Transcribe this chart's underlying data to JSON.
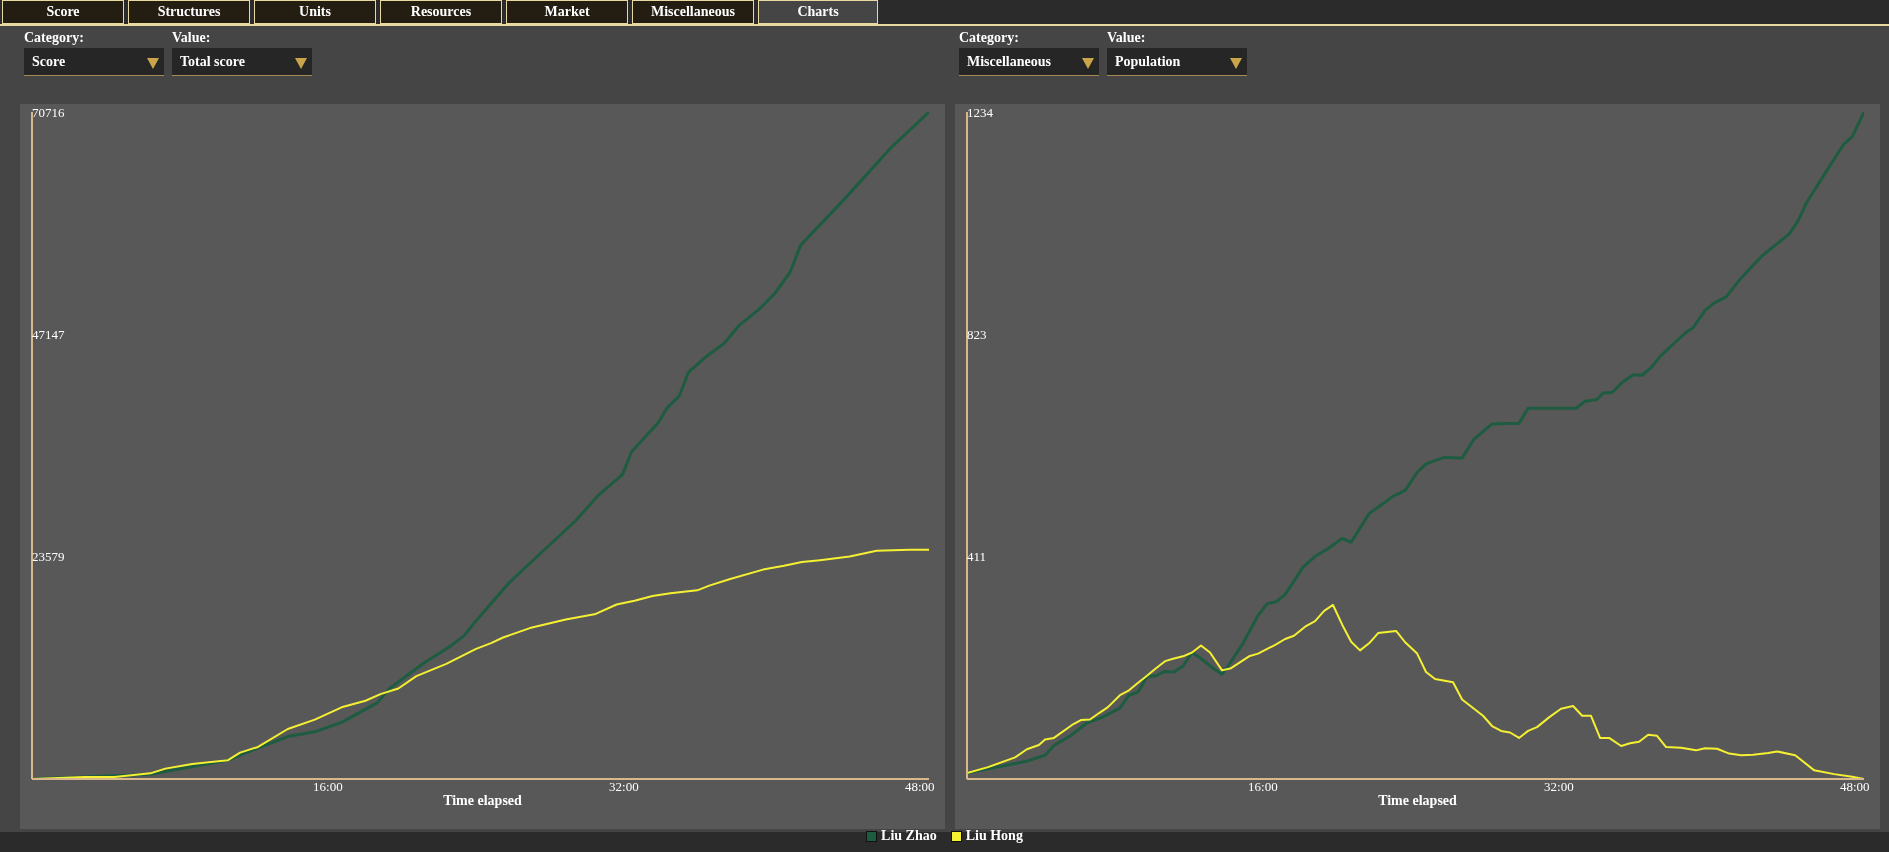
{
  "chart_data": [
    {
      "type": "line",
      "title": "Total score",
      "subtitle": "Score",
      "xlabel": "Time elapsed",
      "annotations": [
        "Category:",
        "Value:",
        "Score",
        "Structures",
        "Units",
        "Resources",
        "Market",
        "Miscellaneous",
        "Charts"
      ],
      "xlim": [
        0,
        48.5
      ],
      "xticks": [
        {
          "value": 16,
          "label": "16:00"
        },
        {
          "value": 32,
          "label": "32:00"
        },
        {
          "value": 48,
          "label": "48:00"
        }
      ],
      "ylim": [
        0,
        70716
      ],
      "yticks": [
        23579,
        47147,
        70716
      ],
      "legend": "bottom",
      "series": [
        {
          "name": "Liu Zhao",
          "color": "#1d5c40",
          "x": [
            0,
            6.4,
            10.6,
            12.22,
            13.83,
            15.29,
            16.74,
            18.68,
            19.33,
            21.27,
            22.56,
            23.37,
            23.85,
            25.79,
            26.44,
            29.35,
            30.64,
            31.93,
            32.42,
            33.87,
            34.36,
            35,
            35.49,
            36.46,
            37.43,
            38.24,
            39.37,
            40.17,
            40.98,
            41.56,
            43.89,
            46.48,
            48.5
          ],
          "values": [
            0,
            500,
            2000,
            3300,
            4500,
            5000,
            6000,
            8100,
            9600,
            12400,
            14000,
            15200,
            16400,
            20800,
            22000,
            27300,
            30100,
            32300,
            34700,
            37800,
            39400,
            40600,
            43100,
            44800,
            46200,
            48100,
            49900,
            51500,
            53700,
            56600,
            61400,
            67000,
            70716
          ]
        },
        {
          "name": "Liu Hong",
          "color": "#f5f032",
          "x": [
            0,
            2.84,
            4.46,
            6.4,
            7.21,
            8.66,
            10.6,
            11.25,
            12.22,
            13.83,
            15.29,
            16.74,
            18.03,
            18.84,
            19.81,
            20.78,
            22.4,
            24.01,
            24.82,
            25.47,
            26.92,
            28.86,
            30.48,
            31.61,
            32.58,
            33.55,
            34.52,
            35.97,
            36.62,
            37.75,
            39.53,
            40.66,
            41.63,
            42.6,
            44.21,
            45.67,
            47.45,
            48.5
          ],
          "values": [
            0,
            200,
            200,
            600,
            1100,
            1600,
            2000,
            2800,
            3400,
            5300,
            6300,
            7600,
            8300,
            9000,
            9600,
            10900,
            12200,
            13800,
            14400,
            15000,
            16000,
            16900,
            17500,
            18500,
            18900,
            19400,
            19700,
            20000,
            20500,
            21200,
            22200,
            22600,
            23000,
            23200,
            23600,
            24200,
            24300,
            24300
          ]
        }
      ]
    },
    {
      "type": "line",
      "title": "Population",
      "subtitle": "Miscellaneous",
      "xlabel": "Time elapsed",
      "annotations": [
        "Category:",
        "Value:"
      ],
      "xlim": [
        0,
        48.5
      ],
      "xticks": [
        {
          "value": 16,
          "label": "16:00"
        },
        {
          "value": 32,
          "label": "32:00"
        },
        {
          "value": 48,
          "label": "48:00"
        }
      ],
      "ylim": [
        0,
        1234
      ],
      "yticks": [
        411,
        823,
        1234
      ],
      "series": [
        {
          "name": "Liu Zhao",
          "color": "#1d5c40",
          "x": [
            0,
            1.62,
            3.24,
            4.22,
            4.7,
            5.68,
            6.49,
            7.3,
            8.27,
            8.76,
            9.25,
            9.73,
            10.22,
            10.71,
            11.19,
            11.68,
            12.17,
            12.65,
            13.3,
            13.79,
            14.11,
            14.93,
            15.74,
            16.22,
            16.71,
            17.2,
            18.17,
            18.82,
            19.47,
            20.28,
            20.77,
            21.74,
            23.04,
            23.69,
            24.34,
            24.82,
            25.8,
            26.77,
            27.42,
            28.39,
            29.85,
            30.34,
            32.93,
            33.42,
            34.07,
            34.39,
            34.88,
            35.37,
            36.02,
            36.5,
            36.99,
            37.48,
            38.29,
            38.94,
            39.26,
            39.91,
            40.4,
            41.05,
            41.86,
            42.99,
            44.45,
            44.94,
            45.42,
            47.37,
            47.86,
            48.5
          ],
          "values": [
            11,
            22,
            33,
            44,
            62,
            82,
            104,
            114,
            131,
            155,
            161,
            189,
            191,
            199,
            198,
            209,
            234,
            223,
            205,
            194,
            209,
            251,
            303,
            324,
            328,
            341,
            392,
            412,
            425,
            445,
            438,
            491,
            523,
            534,
            567,
            583,
            595,
            594,
            629,
            657,
            658,
            686,
            686,
            699,
            702,
            714,
            715,
            732,
            748,
            747,
            761,
            782,
            808,
            828,
            835,
            867,
            881,
            892,
            927,
            968,
            1008,
            1033,
            1068,
            1173,
            1188,
            1234
          ]
        },
        {
          "name": "Liu Hong",
          "color": "#f5f032",
          "x": [
            0,
            1.14,
            2.6,
            3.24,
            3.89,
            4.22,
            4.7,
            5.68,
            6.16,
            6.65,
            7.14,
            7.62,
            8.27,
            8.76,
            9.25,
            9.73,
            10.22,
            10.71,
            11.19,
            11.68,
            12.17,
            12.65,
            13.14,
            13.79,
            14.28,
            15.25,
            15.74,
            16.71,
            17.2,
            17.68,
            18.33,
            18.82,
            19.31,
            19.79,
            20.28,
            20.77,
            21.25,
            21.74,
            22.23,
            23.2,
            23.69,
            24.34,
            24.82,
            25.31,
            26.28,
            26.77,
            27.9,
            28.39,
            28.88,
            29.36,
            29.85,
            30.34,
            30.82,
            31.47,
            32.12,
            32.77,
            33.26,
            33.74,
            34.23,
            34.72,
            35.37,
            35.85,
            36.34,
            36.83,
            37.31,
            37.8,
            38.61,
            39.42,
            39.91,
            40.56,
            41.21,
            41.86,
            42.51,
            43.32,
            43.8,
            44.78,
            45.81,
            46.89,
            47.86,
            48.5
          ],
          "values": [
            11,
            22,
            40,
            55,
            63,
            73,
            76,
            100,
            109,
            110,
            122,
            133,
            155,
            164,
            178,
            191,
            205,
            218,
            223,
            227,
            234,
            247,
            234,
            201,
            205,
            227,
            232,
            249,
            259,
            265,
            283,
            292,
            311,
            322,
            286,
            254,
            238,
            251,
            270,
            274,
            253,
            232,
            198,
            185,
            179,
            147,
            117,
            98,
            89,
            86,
            76,
            89,
            96,
            114,
            130,
            135,
            117,
            117,
            76,
            76,
            61,
            66,
            69,
            82,
            80,
            59,
            58,
            53,
            57,
            56,
            47,
            44,
            45,
            48,
            51,
            44,
            16,
            9,
            4,
            0
          ]
        }
      ]
    }
  ]
}
